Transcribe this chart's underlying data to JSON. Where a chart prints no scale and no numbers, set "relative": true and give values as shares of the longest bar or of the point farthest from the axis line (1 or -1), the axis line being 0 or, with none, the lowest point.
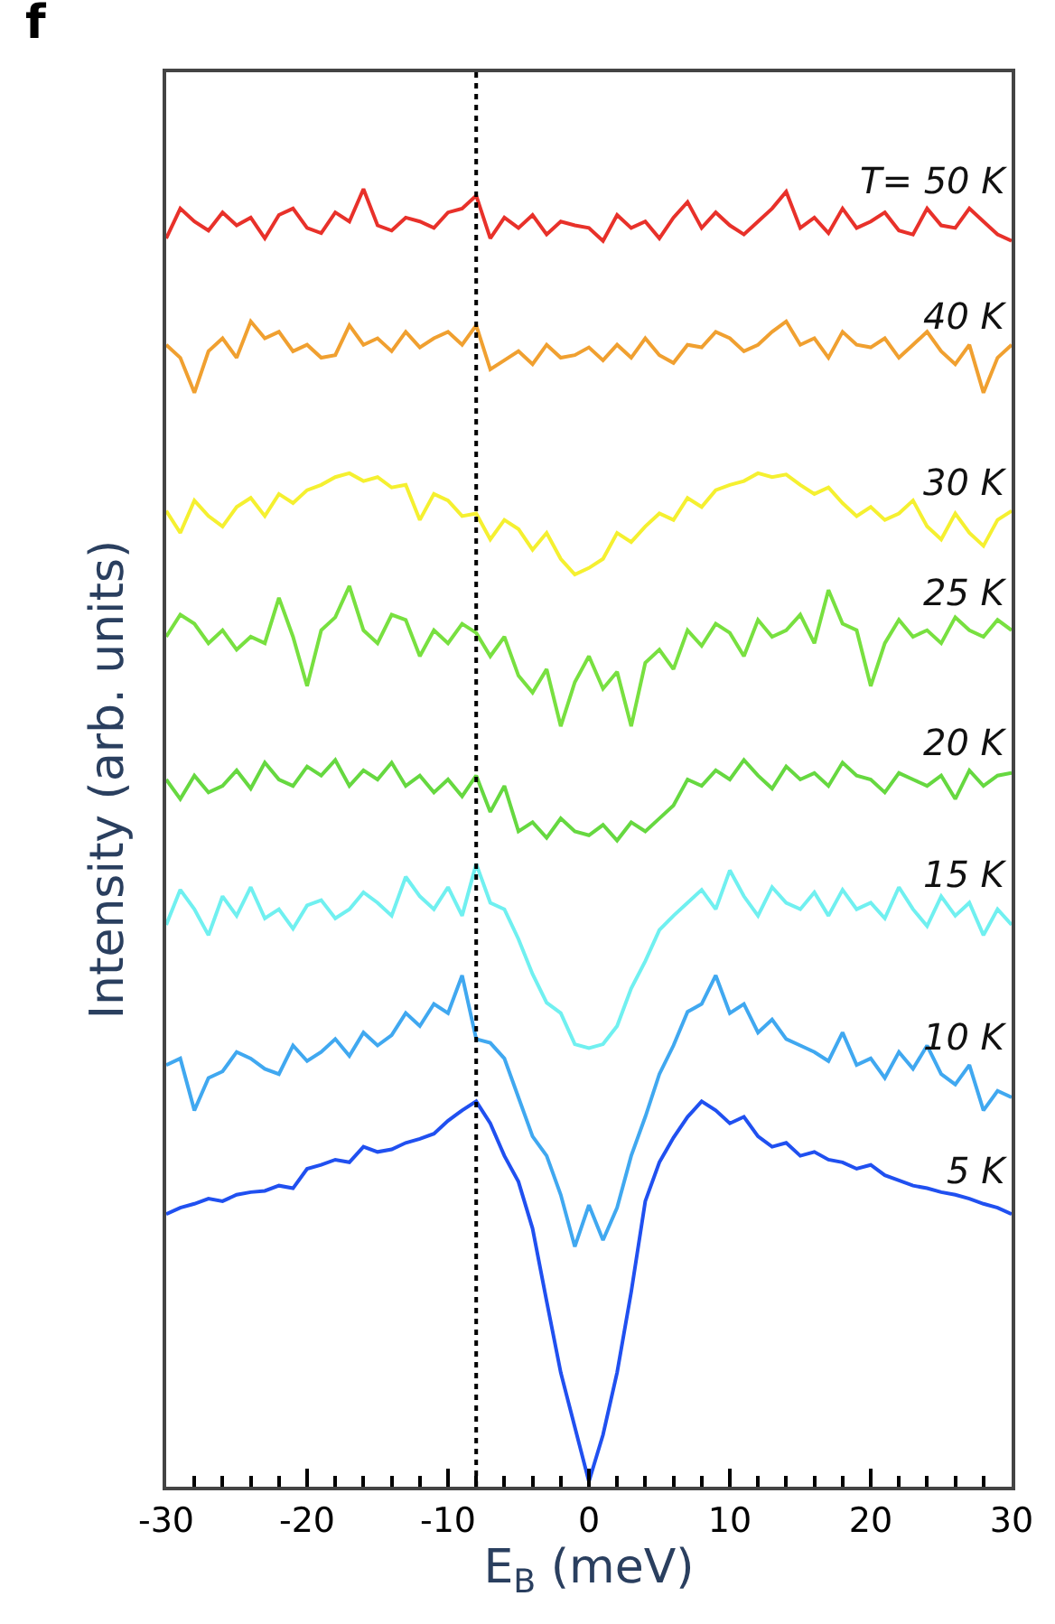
{
  "chart_data": {
    "type": "line",
    "relative": true,
    "xlabel": "E$_{B}$ (meV)",
    "ylabel": "Intensity (arb. units)",
    "annotations": [
      "f"
    ],
    "x": [
      -30,
      -29,
      -28,
      -27,
      -26,
      -25,
      -24,
      -23,
      -22,
      -21,
      -20,
      -19,
      -18,
      -17,
      -16,
      -15,
      -14,
      -13,
      -12,
      -11,
      -10,
      -9,
      -8,
      -7,
      -6,
      -5,
      -4,
      -3,
      -2,
      -1,
      0,
      1,
      2,
      3,
      4,
      5,
      6,
      7,
      8,
      9,
      10,
      11,
      12,
      13,
      14,
      15,
      16,
      17,
      18,
      19,
      20,
      21,
      22,
      23,
      24,
      25,
      26,
      27,
      28,
      29,
      30
    ],
    "xlim": [
      -30,
      30
    ],
    "xticks": [
      -30,
      -20,
      -10,
      0,
      10,
      20,
      30
    ],
    "grid": false,
    "legend": false,
    "marker": "none",
    "line_style": "solid",
    "ref_lines": [
      {
        "axis": "x",
        "value": -8,
        "color": "#000000",
        "line_style": "dotted"
      }
    ],
    "series": [
      {
        "name": "T= 50 K",
        "color": "#e8312a",
        "values": [
          0.962,
          0.985,
          0.975,
          0.968,
          0.982,
          0.972,
          0.978,
          0.962,
          0.98,
          0.985,
          0.97,
          0.966,
          0.982,
          0.975,
          1.0,
          0.972,
          0.968,
          0.978,
          0.975,
          0.97,
          0.982,
          0.985,
          0.995,
          0.962,
          0.978,
          0.97,
          0.98,
          0.965,
          0.975,
          0.972,
          0.97,
          0.96,
          0.98,
          0.97,
          0.975,
          0.962,
          0.978,
          0.99,
          0.97,
          0.982,
          0.972,
          0.965,
          0.975,
          0.985,
          0.998,
          0.97,
          0.978,
          0.966,
          0.985,
          0.97,
          0.975,
          0.982,
          0.968,
          0.965,
          0.985,
          0.972,
          0.97,
          0.985,
          0.975,
          0.965,
          0.96
        ]
      },
      {
        "name": "40 K",
        "color": "#f0a030",
        "values": [
          0.88,
          0.87,
          0.843,
          0.875,
          0.885,
          0.87,
          0.898,
          0.885,
          0.89,
          0.875,
          0.88,
          0.87,
          0.872,
          0.895,
          0.88,
          0.885,
          0.875,
          0.89,
          0.878,
          0.885,
          0.89,
          0.88,
          0.895,
          0.861,
          0.868,
          0.875,
          0.865,
          0.88,
          0.87,
          0.872,
          0.878,
          0.868,
          0.88,
          0.87,
          0.885,
          0.872,
          0.866,
          0.88,
          0.878,
          0.89,
          0.885,
          0.875,
          0.88,
          0.89,
          0.898,
          0.88,
          0.885,
          0.87,
          0.89,
          0.88,
          0.878,
          0.885,
          0.87,
          0.88,
          0.89,
          0.875,
          0.865,
          0.88,
          0.843,
          0.87,
          0.88
        ]
      },
      {
        "name": "30 K",
        "color": "#f5f030",
        "values": [
          0.752,
          0.735,
          0.76,
          0.748,
          0.74,
          0.755,
          0.762,
          0.748,
          0.765,
          0.758,
          0.768,
          0.772,
          0.778,
          0.781,
          0.775,
          0.778,
          0.77,
          0.772,
          0.745,
          0.765,
          0.76,
          0.748,
          0.75,
          0.73,
          0.745,
          0.738,
          0.722,
          0.735,
          0.715,
          0.703,
          0.708,
          0.715,
          0.735,
          0.728,
          0.74,
          0.75,
          0.745,
          0.762,
          0.755,
          0.768,
          0.772,
          0.775,
          0.781,
          0.778,
          0.78,
          0.772,
          0.765,
          0.77,
          0.758,
          0.748,
          0.755,
          0.745,
          0.75,
          0.76,
          0.74,
          0.73,
          0.75,
          0.735,
          0.725,
          0.745,
          0.752
        ]
      },
      {
        "name": "25 K",
        "color": "#78e040",
        "values": [
          0.655,
          0.672,
          0.665,
          0.65,
          0.66,
          0.645,
          0.655,
          0.65,
          0.685,
          0.655,
          0.617,
          0.66,
          0.67,
          0.694,
          0.66,
          0.65,
          0.672,
          0.668,
          0.64,
          0.66,
          0.65,
          0.665,
          0.658,
          0.64,
          0.655,
          0.625,
          0.612,
          0.63,
          0.586,
          0.62,
          0.64,
          0.615,
          0.628,
          0.586,
          0.635,
          0.645,
          0.63,
          0.66,
          0.648,
          0.665,
          0.658,
          0.64,
          0.668,
          0.655,
          0.66,
          0.672,
          0.65,
          0.691,
          0.665,
          0.66,
          0.617,
          0.65,
          0.668,
          0.655,
          0.66,
          0.65,
          0.67,
          0.66,
          0.655,
          0.668,
          0.66
        ]
      },
      {
        "name": "20 K",
        "color": "#66d840",
        "values": [
          0.545,
          0.53,
          0.548,
          0.535,
          0.54,
          0.552,
          0.538,
          0.558,
          0.545,
          0.54,
          0.555,
          0.548,
          0.56,
          0.54,
          0.552,
          0.545,
          0.558,
          0.54,
          0.548,
          0.535,
          0.545,
          0.532,
          0.548,
          0.52,
          0.54,
          0.505,
          0.512,
          0.5,
          0.515,
          0.505,
          0.502,
          0.51,
          0.498,
          0.512,
          0.505,
          0.515,
          0.525,
          0.545,
          0.54,
          0.552,
          0.545,
          0.56,
          0.548,
          0.538,
          0.555,
          0.545,
          0.55,
          0.54,
          0.558,
          0.548,
          0.545,
          0.535,
          0.55,
          0.545,
          0.54,
          0.548,
          0.53,
          0.552,
          0.54,
          0.548,
          0.55
        ]
      },
      {
        "name": "15 K",
        "color": "#70f0f0",
        "values": [
          0.433,
          0.46,
          0.445,
          0.425,
          0.455,
          0.44,
          0.462,
          0.438,
          0.445,
          0.43,
          0.448,
          0.452,
          0.438,
          0.445,
          0.458,
          0.45,
          0.44,
          0.47,
          0.455,
          0.445,
          0.462,
          0.44,
          0.48,
          0.45,
          0.445,
          0.422,
          0.395,
          0.373,
          0.365,
          0.341,
          0.338,
          0.341,
          0.355,
          0.384,
          0.405,
          0.429,
          0.44,
          0.45,
          0.46,
          0.445,
          0.475,
          0.455,
          0.44,
          0.462,
          0.45,
          0.445,
          0.458,
          0.44,
          0.46,
          0.445,
          0.45,
          0.438,
          0.462,
          0.445,
          0.432,
          0.455,
          0.44,
          0.45,
          0.425,
          0.445,
          0.433
        ]
      },
      {
        "name": "10 K",
        "color": "#40a8f0",
        "values": [
          0.325,
          0.33,
          0.29,
          0.315,
          0.32,
          0.335,
          0.33,
          0.322,
          0.318,
          0.34,
          0.328,
          0.335,
          0.345,
          0.332,
          0.35,
          0.34,
          0.348,
          0.365,
          0.355,
          0.372,
          0.365,
          0.394,
          0.345,
          0.342,
          0.33,
          0.3,
          0.27,
          0.255,
          0.225,
          0.185,
          0.217,
          0.19,
          0.215,
          0.255,
          0.285,
          0.318,
          0.34,
          0.366,
          0.372,
          0.394,
          0.365,
          0.372,
          0.35,
          0.36,
          0.345,
          0.34,
          0.335,
          0.328,
          0.35,
          0.325,
          0.33,
          0.315,
          0.335,
          0.322,
          0.34,
          0.318,
          0.31,
          0.325,
          0.29,
          0.305,
          0.3
        ]
      },
      {
        "name": "5 K",
        "color": "#2050f0",
        "values": [
          0.21,
          0.215,
          0.218,
          0.222,
          0.22,
          0.225,
          0.227,
          0.228,
          0.232,
          0.23,
          0.245,
          0.248,
          0.252,
          0.25,
          0.262,
          0.258,
          0.26,
          0.265,
          0.268,
          0.272,
          0.282,
          0.29,
          0.297,
          0.28,
          0.255,
          0.235,
          0.199,
          0.143,
          0.088,
          0.046,
          0.004,
          0.04,
          0.088,
          0.15,
          0.22,
          0.25,
          0.269,
          0.285,
          0.297,
          0.29,
          0.28,
          0.285,
          0.27,
          0.262,
          0.265,
          0.255,
          0.258,
          0.252,
          0.25,
          0.245,
          0.248,
          0.24,
          0.236,
          0.232,
          0.23,
          0.227,
          0.225,
          0.222,
          0.218,
          0.215,
          0.21
        ]
      }
    ]
  }
}
